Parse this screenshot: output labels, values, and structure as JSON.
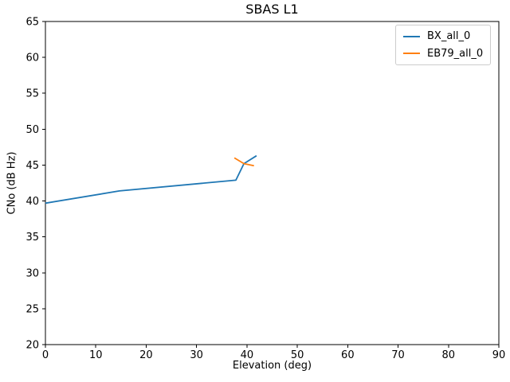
{
  "chart_data": {
    "type": "line",
    "title": "SBAS L1",
    "xlabel": "Elevation (deg)",
    "ylabel": "CNo (dB Hz)",
    "xlim": [
      0,
      90
    ],
    "ylim": [
      20,
      65
    ],
    "xticks": [
      0,
      10,
      20,
      30,
      40,
      50,
      60,
      70,
      80,
      90
    ],
    "yticks": [
      20,
      25,
      30,
      35,
      40,
      45,
      50,
      55,
      60,
      65
    ],
    "grid": false,
    "legend_position": "upper right",
    "series": [
      {
        "name": "BX_all_0",
        "color": "#1f77b4",
        "points": [
          [
            0,
            39.7
          ],
          [
            14.7,
            41.4
          ],
          [
            37.8,
            42.9
          ],
          [
            39.4,
            45.2
          ],
          [
            41.9,
            46.3
          ]
        ]
      },
      {
        "name": "EB79_all_0",
        "color": "#ff7f0e",
        "points": [
          [
            37.5,
            46.0
          ],
          [
            39.4,
            45.2
          ],
          [
            41.4,
            44.9
          ]
        ]
      }
    ]
  },
  "frame": {
    "background": "#ffffff",
    "spine_color": "#000000",
    "tick_color": "#000000",
    "legend_border_color": "#cccccc"
  }
}
